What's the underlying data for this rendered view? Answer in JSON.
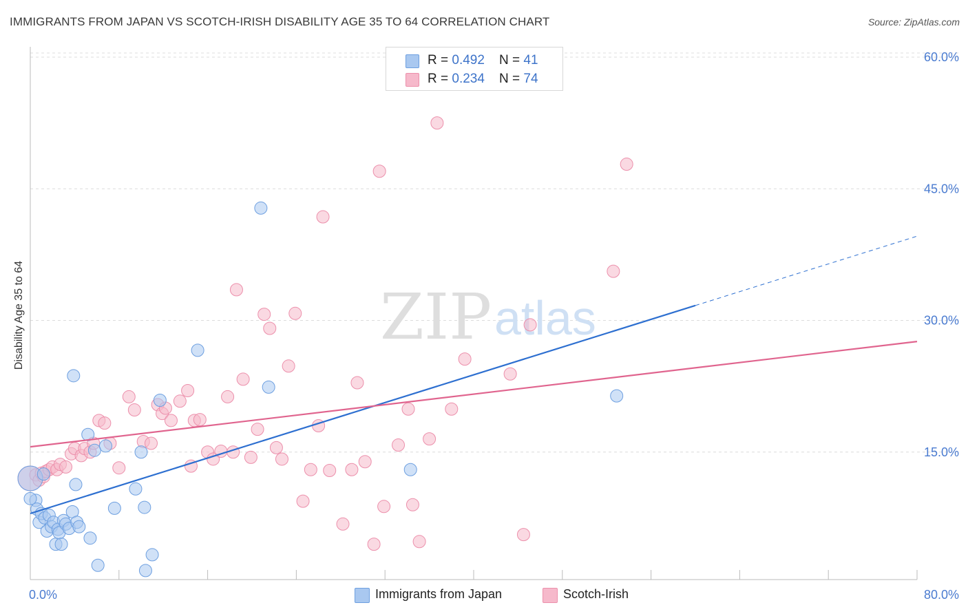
{
  "header": {
    "title": "IMMIGRANTS FROM JAPAN VS SCOTCH-IRISH DISABILITY AGE 35 TO 64 CORRELATION CHART",
    "source": "Source: ZipAtlas.com"
  },
  "legend": {
    "rows": [
      {
        "r_label": "R = ",
        "r_value": "0.492",
        "n_label": "N = ",
        "n_value": "41"
      },
      {
        "r_label": "R = ",
        "r_value": "0.234",
        "n_label": "N = ",
        "n_value": "74"
      }
    ]
  },
  "watermark": {
    "zip": "ZIP",
    "atlas": "atlas"
  },
  "colors": {
    "blue_fill": "#a9c8f0",
    "blue_stroke": "#6d9fe0",
    "blue_line": "#2d6fd0",
    "pink_fill": "#f6b9cb",
    "pink_stroke": "#ec8fab",
    "pink_line": "#e0648e",
    "tick_text": "#4a7bd0",
    "grid": "#dcdcdc"
  },
  "chart_data": {
    "type": "scatter",
    "title": "IMMIGRANTS FROM JAPAN VS SCOTCH-IRISH DISABILITY AGE 35 TO 64 CORRELATION CHART",
    "xlabel": "",
    "ylabel": "Disability Age 35 to 64",
    "xlim": [
      0,
      80
    ],
    "ylim": [
      0,
      60
    ],
    "x_tick_labels": [
      "0.0%",
      "80.0%"
    ],
    "y_tick_labels": [
      "15.0%",
      "30.0%",
      "45.0%",
      "60.0%"
    ],
    "y_ticks": [
      15,
      30,
      45,
      60
    ],
    "grid": true,
    "legend_position": "top-center",
    "series": [
      {
        "name": "Immigrants from Japan",
        "color": "blue",
        "r": 0.492,
        "n": 41,
        "points": [
          [
            0.0,
            12.0
          ],
          [
            0.5,
            9.5
          ],
          [
            0.6,
            8.5
          ],
          [
            0.8,
            7.0
          ],
          [
            1.0,
            8.0
          ],
          [
            1.2,
            12.5
          ],
          [
            1.3,
            7.5
          ],
          [
            1.5,
            6.0
          ],
          [
            1.7,
            7.8
          ],
          [
            1.9,
            6.5
          ],
          [
            2.1,
            7.0
          ],
          [
            2.3,
            4.5
          ],
          [
            2.5,
            6.2
          ],
          [
            2.6,
            5.8
          ],
          [
            2.8,
            4.5
          ],
          [
            3.0,
            7.2
          ],
          [
            3.2,
            6.8
          ],
          [
            3.5,
            6.3
          ],
          [
            3.8,
            8.2
          ],
          [
            3.9,
            23.7
          ],
          [
            4.1,
            11.3
          ],
          [
            4.2,
            7.0
          ],
          [
            4.4,
            6.5
          ],
          [
            5.2,
            17.0
          ],
          [
            5.4,
            5.2
          ],
          [
            5.8,
            15.2
          ],
          [
            6.1,
            2.1
          ],
          [
            6.8,
            15.7
          ],
          [
            7.6,
            8.6
          ],
          [
            9.5,
            10.8
          ],
          [
            10.0,
            15.0
          ],
          [
            10.3,
            8.7
          ],
          [
            10.4,
            1.5
          ],
          [
            11.0,
            3.3
          ],
          [
            11.7,
            20.9
          ],
          [
            15.1,
            26.6
          ],
          [
            20.8,
            42.8
          ],
          [
            21.5,
            22.4
          ],
          [
            34.3,
            13.0
          ],
          [
            52.9,
            21.4
          ],
          [
            0.0,
            9.7
          ]
        ]
      },
      {
        "name": "Scotch-Irish",
        "color": "pink",
        "r": 0.234,
        "n": 74,
        "points": [
          [
            0.0,
            12.0
          ],
          [
            0.5,
            12.4
          ],
          [
            0.8,
            11.8
          ],
          [
            1.0,
            12.6
          ],
          [
            1.2,
            12.2
          ],
          [
            1.4,
            12.8
          ],
          [
            1.7,
            13.0
          ],
          [
            2.0,
            13.3
          ],
          [
            2.4,
            13.0
          ],
          [
            2.7,
            13.6
          ],
          [
            3.2,
            13.3
          ],
          [
            3.7,
            14.8
          ],
          [
            4.0,
            15.4
          ],
          [
            4.6,
            14.6
          ],
          [
            4.9,
            15.4
          ],
          [
            5.4,
            15.0
          ],
          [
            5.7,
            16.0
          ],
          [
            6.2,
            18.6
          ],
          [
            6.7,
            18.3
          ],
          [
            7.2,
            16.0
          ],
          [
            8.0,
            13.2
          ],
          [
            8.9,
            21.3
          ],
          [
            9.4,
            19.8
          ],
          [
            10.2,
            16.2
          ],
          [
            10.9,
            16.0
          ],
          [
            11.5,
            20.4
          ],
          [
            11.9,
            19.4
          ],
          [
            12.2,
            20.0
          ],
          [
            12.7,
            18.6
          ],
          [
            13.5,
            20.8
          ],
          [
            14.2,
            22.0
          ],
          [
            14.5,
            13.4
          ],
          [
            14.8,
            18.6
          ],
          [
            15.3,
            18.7
          ],
          [
            16.0,
            15.0
          ],
          [
            16.5,
            14.2
          ],
          [
            17.2,
            15.1
          ],
          [
            17.8,
            21.3
          ],
          [
            18.3,
            15.0
          ],
          [
            18.6,
            33.5
          ],
          [
            19.2,
            23.3
          ],
          [
            19.9,
            14.4
          ],
          [
            20.5,
            17.6
          ],
          [
            21.1,
            30.7
          ],
          [
            21.6,
            29.1
          ],
          [
            22.2,
            15.5
          ],
          [
            22.7,
            14.2
          ],
          [
            23.3,
            24.8
          ],
          [
            23.9,
            30.8
          ],
          [
            24.6,
            9.4
          ],
          [
            25.3,
            13.0
          ],
          [
            26.0,
            18.0
          ],
          [
            26.4,
            41.8
          ],
          [
            27.0,
            12.9
          ],
          [
            28.2,
            6.8
          ],
          [
            29.0,
            13.0
          ],
          [
            29.5,
            22.9
          ],
          [
            30.2,
            13.9
          ],
          [
            31.0,
            4.5
          ],
          [
            31.5,
            47.0
          ],
          [
            31.9,
            8.8
          ],
          [
            33.2,
            15.8
          ],
          [
            34.1,
            19.9
          ],
          [
            34.5,
            9.0
          ],
          [
            35.1,
            4.8
          ],
          [
            36.0,
            16.5
          ],
          [
            36.7,
            52.5
          ],
          [
            38.0,
            19.9
          ],
          [
            39.2,
            25.6
          ],
          [
            43.3,
            23.9
          ],
          [
            44.5,
            5.6
          ],
          [
            45.1,
            29.5
          ],
          [
            52.6,
            35.6
          ],
          [
            53.8,
            47.8
          ]
        ]
      }
    ],
    "trendlines": [
      {
        "series": "Immigrants from Japan",
        "x0": 0,
        "y0": 8.0,
        "x1": 60.0,
        "y1": 31.7,
        "dashed_to_x": 80,
        "dashed_to_y": 39.6
      },
      {
        "series": "Scotch-Irish",
        "x0": 0,
        "y0": 15.6,
        "x1": 80,
        "y1": 27.6
      }
    ]
  },
  "bottom_legend": {
    "items": [
      {
        "label": "Immigrants from Japan"
      },
      {
        "label": "Scotch-Irish"
      }
    ]
  }
}
